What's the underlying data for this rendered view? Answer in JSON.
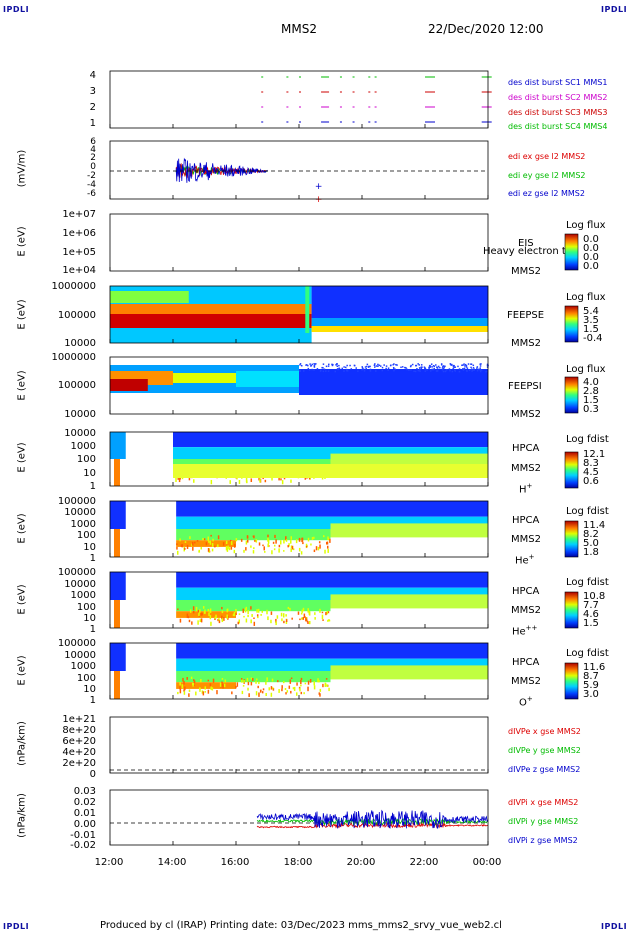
{
  "corner_label": "IPDLI",
  "header": {
    "mission": "MMS2",
    "date": "22/Dec/2020 12:00"
  },
  "footer": "Produced by cl (IRAP)   Printing date: 03/Dec/2023   mms_mms2_srvy_vue_web2.cl",
  "x_ticks": [
    "12:00",
    "14:00",
    "16:00",
    "18:00",
    "20:00",
    "22:00",
    "00:00"
  ],
  "colors": {
    "mms1": "#0000cc",
    "mms2": "#cc00cc",
    "mms3": "#cc0000",
    "mms4": "#00bb00",
    "x": "#dd0000",
    "y": "#00bb00",
    "z": "#0000cc"
  },
  "panels": {
    "burst": {
      "y_ticks": [
        "4",
        "3",
        "2",
        "1"
      ],
      "legend": [
        "des dist burst SC1 MMS1",
        "des dist burst SC2 MMS2",
        "des dist burst SC3 MMS3",
        "des dist burst SC4 MMS4"
      ]
    },
    "edi": {
      "ylabel": "(mV/m)",
      "y_ticks": [
        "6",
        "4",
        "2",
        "0",
        "-2",
        "-4",
        "-6"
      ],
      "legend": [
        "edi ex gse l2 MMS2",
        "edi ey gse l2 MMS2",
        "edi ez gse l2 MMS2"
      ]
    },
    "eis": {
      "ylabel": "E (eV)",
      "y_ticks": [
        "1e+07",
        "1e+06",
        "1e+05",
        "1e+04"
      ],
      "inst": "EIS",
      "sc": "MMS2",
      "overlay": "Heavy electron to",
      "cb_title": "Log flux",
      "cb_values": [
        "0.0",
        "0.0",
        "0.0",
        "0.0"
      ]
    },
    "feepse": {
      "ylabel": "E (eV)",
      "y_ticks": [
        "1000000",
        "100000",
        "10000"
      ],
      "inst": "FEEPSE",
      "sc": "MMS2",
      "cb_title": "Log flux",
      "cb_values": [
        "5.4",
        "3.5",
        "1.5",
        "-0.4"
      ]
    },
    "feepsi": {
      "ylabel": "E (eV)",
      "y_ticks": [
        "1000000",
        "100000",
        "10000"
      ],
      "inst": "FEEPSI",
      "sc": "MMS2",
      "cb_title": "Log flux",
      "cb_values": [
        "4.0",
        "2.8",
        "1.5",
        "0.3"
      ]
    },
    "hpca_h": {
      "ylabel": "E (eV)",
      "y_ticks": [
        "10000",
        "1000",
        "100",
        "10",
        "1"
      ],
      "inst": "HPCA",
      "sc": "MMS2",
      "species": "H",
      "charge": "+",
      "cb_title": "Log fdist",
      "cb_values": [
        "12.1",
        "8.3",
        "4.5",
        "0.6"
      ]
    },
    "hpca_he": {
      "ylabel": "E (eV)",
      "y_ticks": [
        "100000",
        "10000",
        "1000",
        "100",
        "10",
        "1"
      ],
      "inst": "HPCA",
      "sc": "MMS2",
      "species": "He",
      "charge": "+",
      "cb_title": "Log fdist",
      "cb_values": [
        "11.4",
        "8.2",
        "5.0",
        "1.8"
      ]
    },
    "hpca_hepp": {
      "ylabel": "E (eV)",
      "y_ticks": [
        "100000",
        "10000",
        "1000",
        "100",
        "10",
        "1"
      ],
      "inst": "HPCA",
      "sc": "MMS2",
      "species": "He",
      "charge": "++",
      "cb_title": "Log fdist",
      "cb_values": [
        "10.8",
        "7.7",
        "4.6",
        "1.5"
      ]
    },
    "hpca_o": {
      "ylabel": "E (eV)",
      "y_ticks": [
        "100000",
        "10000",
        "1000",
        "100",
        "10",
        "1"
      ],
      "inst": "HPCA",
      "sc": "MMS2",
      "species": "O",
      "charge": "+",
      "cb_title": "Log fdist",
      "cb_values": [
        "11.6",
        "8.7",
        "5.9",
        "3.0"
      ]
    },
    "divpe": {
      "ylabel": "(nPa/km)",
      "y_ticks": [
        "1e+21",
        "8e+20",
        "6e+20",
        "4e+20",
        "2e+20",
        "0"
      ],
      "legend": [
        "dIVPe x gse MMS2",
        "dIVPe y gse MMS2",
        "dIVPe z gse MMS2"
      ]
    },
    "divpi": {
      "ylabel": "(nPa/km)",
      "y_ticks": [
        "0.03",
        "0.02",
        "0.01",
        "0.00",
        "-0.01",
        "-0.02"
      ],
      "legend": [
        "dIVPi x gse MMS2",
        "dIVPi y gse MMS2",
        "dIVPi z gse MMS2"
      ]
    }
  },
  "chart_data": [
    {
      "type": "scatter",
      "title": "des dist burst",
      "y_ticks": [
        1,
        2,
        3,
        4
      ],
      "ylim": [
        0.5,
        4.5
      ],
      "series": [
        {
          "name": "des dist burst SC1 MMS1",
          "y": 1
        },
        {
          "name": "des dist burst SC2 MMS2",
          "y": 2
        },
        {
          "name": "des dist burst SC3 MMS3",
          "y": 3
        },
        {
          "name": "des dist burst SC4 MMS4",
          "y": 4
        }
      ],
      "x_start_hours": [
        16.8,
        18.0,
        18.8,
        19.7,
        20.4,
        22.0
      ]
    },
    {
      "type": "line",
      "ylabel": "(mV/m)",
      "ylim": [
        -6,
        6
      ],
      "x_range": [
        "12:00",
        "00:00"
      ],
      "series": [
        {
          "name": "edi ex gse l2 MMS2",
          "x_span": [
            "14:00",
            "17:00"
          ],
          "amplitude": 1.5
        },
        {
          "name": "edi ey gse l2 MMS2",
          "x_span": [
            "14:00",
            "17:00"
          ],
          "amplitude": 1.2
        },
        {
          "name": "edi ez gse l2 MMS2",
          "x_span": [
            "14:00",
            "17:00"
          ],
          "amplitude": 2.8
        }
      ]
    },
    {
      "type": "heatmap",
      "inst": "EIS",
      "ylabel": "E (eV)",
      "ylim": [
        10000,
        10000000
      ],
      "scale": "log",
      "colorbar": [
        0.0,
        0.0,
        0.0,
        0.0
      ]
    },
    {
      "type": "heatmap",
      "inst": "FEEPSE",
      "ylabel": "E (eV)",
      "ylim": [
        10000,
        1000000
      ],
      "scale": "log",
      "colorbar": [
        5.4,
        3.5,
        1.5,
        -0.4
      ]
    },
    {
      "type": "heatmap",
      "inst": "FEEPSI",
      "ylabel": "E (eV)",
      "ylim": [
        10000,
        1000000
      ],
      "scale": "log",
      "colorbar": [
        4.0,
        2.8,
        1.5,
        0.3
      ]
    },
    {
      "type": "heatmap",
      "inst": "HPCA H+",
      "ylabel": "E (eV)",
      "ylim": [
        1,
        10000
      ],
      "scale": "log",
      "colorbar": [
        12.1,
        8.3,
        4.5,
        0.6
      ]
    },
    {
      "type": "heatmap",
      "inst": "HPCA He+",
      "ylabel": "E (eV)",
      "ylim": [
        1,
        100000
      ],
      "scale": "log",
      "colorbar": [
        11.4,
        8.2,
        5.0,
        1.8
      ]
    },
    {
      "type": "heatmap",
      "inst": "HPCA He++",
      "ylabel": "E (eV)",
      "ylim": [
        1,
        100000
      ],
      "scale": "log",
      "colorbar": [
        10.8,
        7.7,
        4.6,
        1.5
      ]
    },
    {
      "type": "heatmap",
      "inst": "HPCA O+",
      "ylabel": "E (eV)",
      "ylim": [
        1,
        100000
      ],
      "scale": "log",
      "colorbar": [
        11.6,
        8.7,
        5.9,
        3.0
      ]
    },
    {
      "type": "line",
      "ylabel": "(nPa/km)",
      "ylim": [
        0,
        1e+21
      ],
      "series": [
        {
          "name": "dIVPe x gse MMS2"
        },
        {
          "name": "dIVPe y gse MMS2"
        },
        {
          "name": "dIVPe z gse MMS2"
        }
      ]
    },
    {
      "type": "line",
      "ylabel": "(nPa/km)",
      "ylim": [
        -0.02,
        0.03
      ],
      "x_range": [
        "12:00",
        "00:00"
      ],
      "series": [
        {
          "name": "dIVPi x gse MMS2",
          "x_span": [
            "16:40",
            "00:00"
          ],
          "typical": -0.004
        },
        {
          "name": "dIVPi y gse MMS2",
          "x_span": [
            "16:40",
            "00:00"
          ],
          "typical": 0.002
        },
        {
          "name": "dIVPi z gse MMS2",
          "x_span": [
            "16:40",
            "00:00"
          ],
          "typical": 0.006
        }
      ]
    }
  ]
}
